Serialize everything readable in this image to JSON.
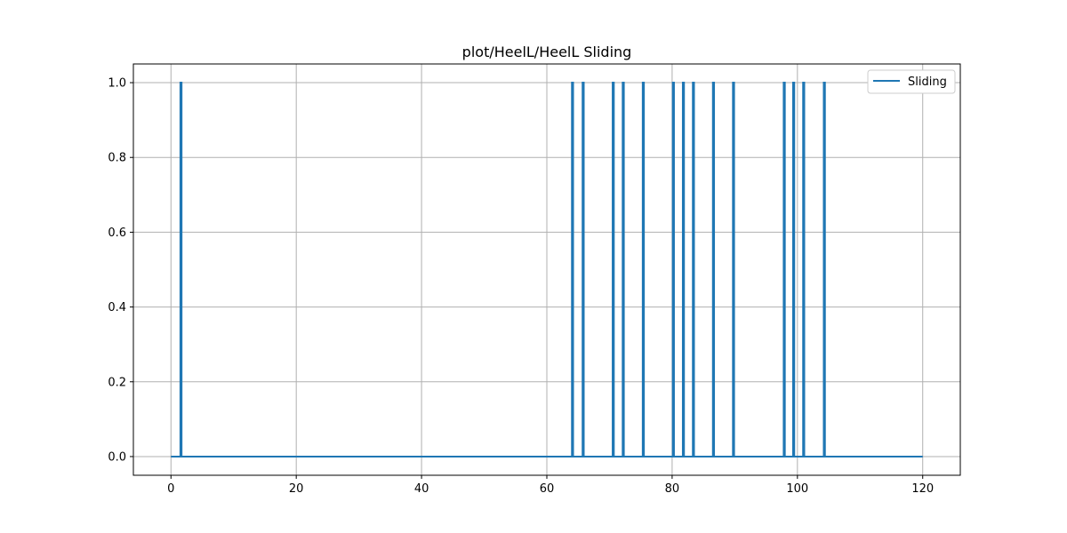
{
  "chart_data": {
    "type": "line",
    "title": "plot/HeelL/HeelL Sliding",
    "xlabel": "",
    "ylabel": "",
    "xlim": [
      -6,
      126
    ],
    "ylim": [
      -0.05,
      1.05
    ],
    "x_ticks": [
      0,
      20,
      40,
      60,
      80,
      100,
      120
    ],
    "y_ticks": [
      0.0,
      0.2,
      0.4,
      0.6,
      0.8,
      1.0
    ],
    "x_tick_labels": [
      "0",
      "20",
      "40",
      "60",
      "80",
      "100",
      "120"
    ],
    "y_tick_labels": [
      "0.0",
      "0.2",
      "0.4",
      "0.6",
      "0.8",
      "1.0"
    ],
    "grid": true,
    "legend_position": "top-right",
    "series": [
      {
        "name": "Sliding",
        "color": "#1f77b4",
        "x_range": [
          0,
          120
        ],
        "baseline": 0,
        "spike_value": 1,
        "spikes_x": [
          1.6,
          64.1,
          65.8,
          70.6,
          72.2,
          75.4,
          80.2,
          81.8,
          83.4,
          86.6,
          89.8,
          97.9,
          99.4,
          101.0,
          104.3
        ]
      }
    ]
  }
}
